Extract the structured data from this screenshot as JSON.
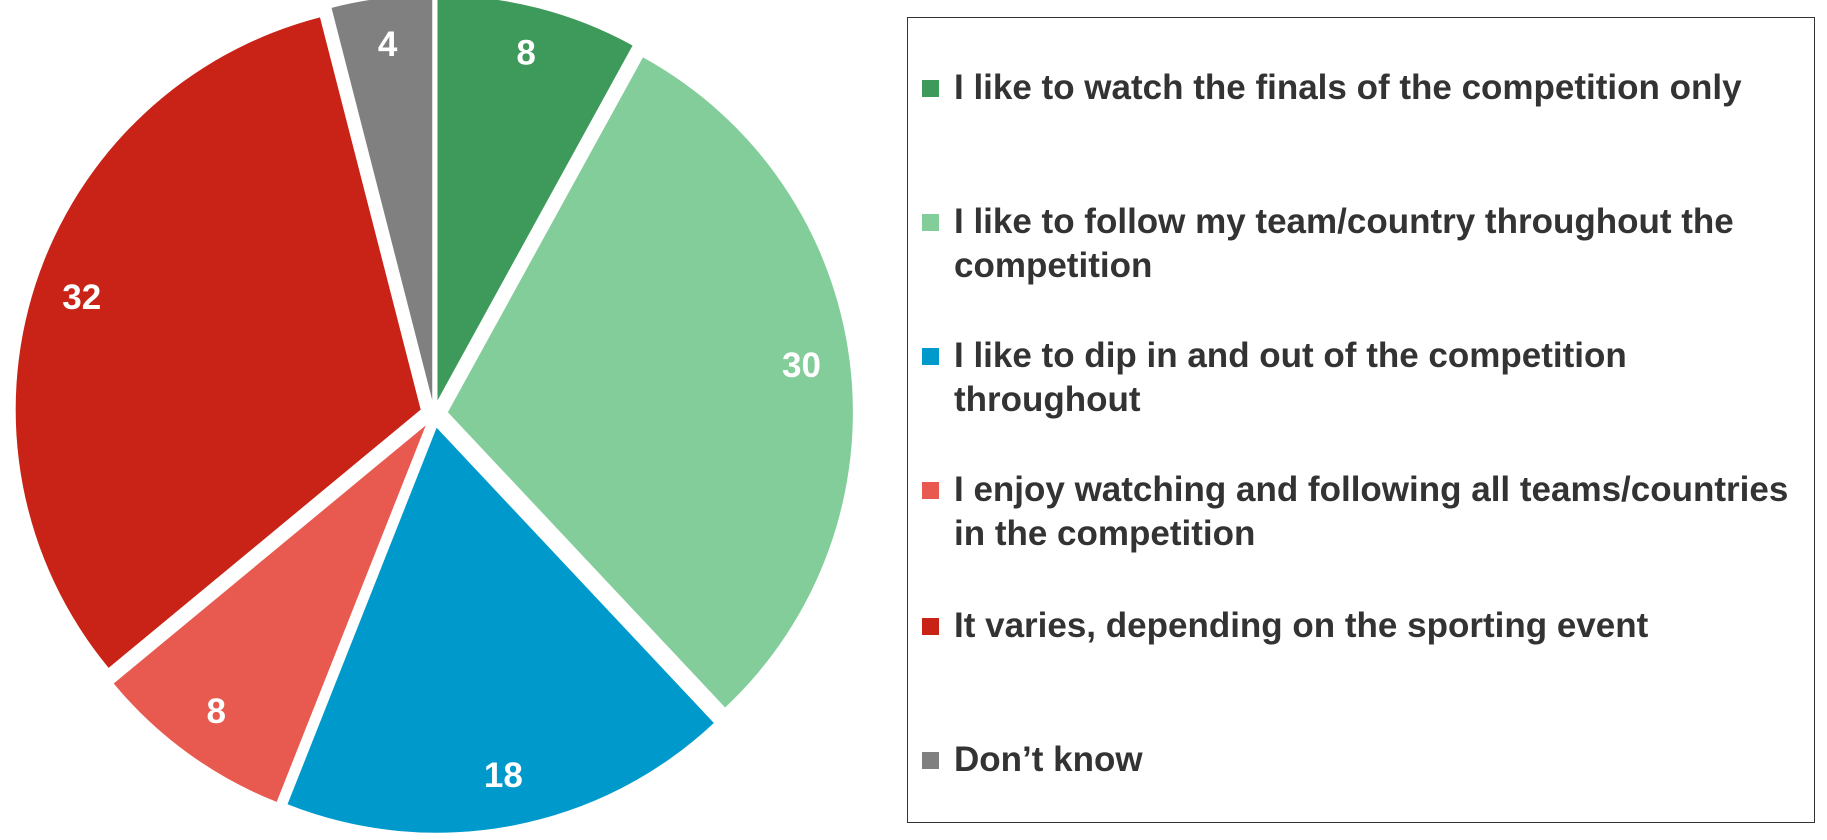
{
  "chart_data": {
    "type": "pie",
    "categories": [
      "I like to watch the finals of the competition only",
      "I like to follow my team/country throughout the competition",
      "I like to dip in and out of the competition throughout",
      "I enjoy watching and following all teams/countries in the competition",
      "It varies, depending on the sporting event",
      "Don’t know"
    ],
    "values": [
      8,
      30,
      18,
      8,
      32,
      4
    ],
    "colors": [
      "#3d9a5a",
      "#82cd9a",
      "#0099cc",
      "#e85a50",
      "#c92216",
      "#808080"
    ],
    "legend": "right"
  }
}
